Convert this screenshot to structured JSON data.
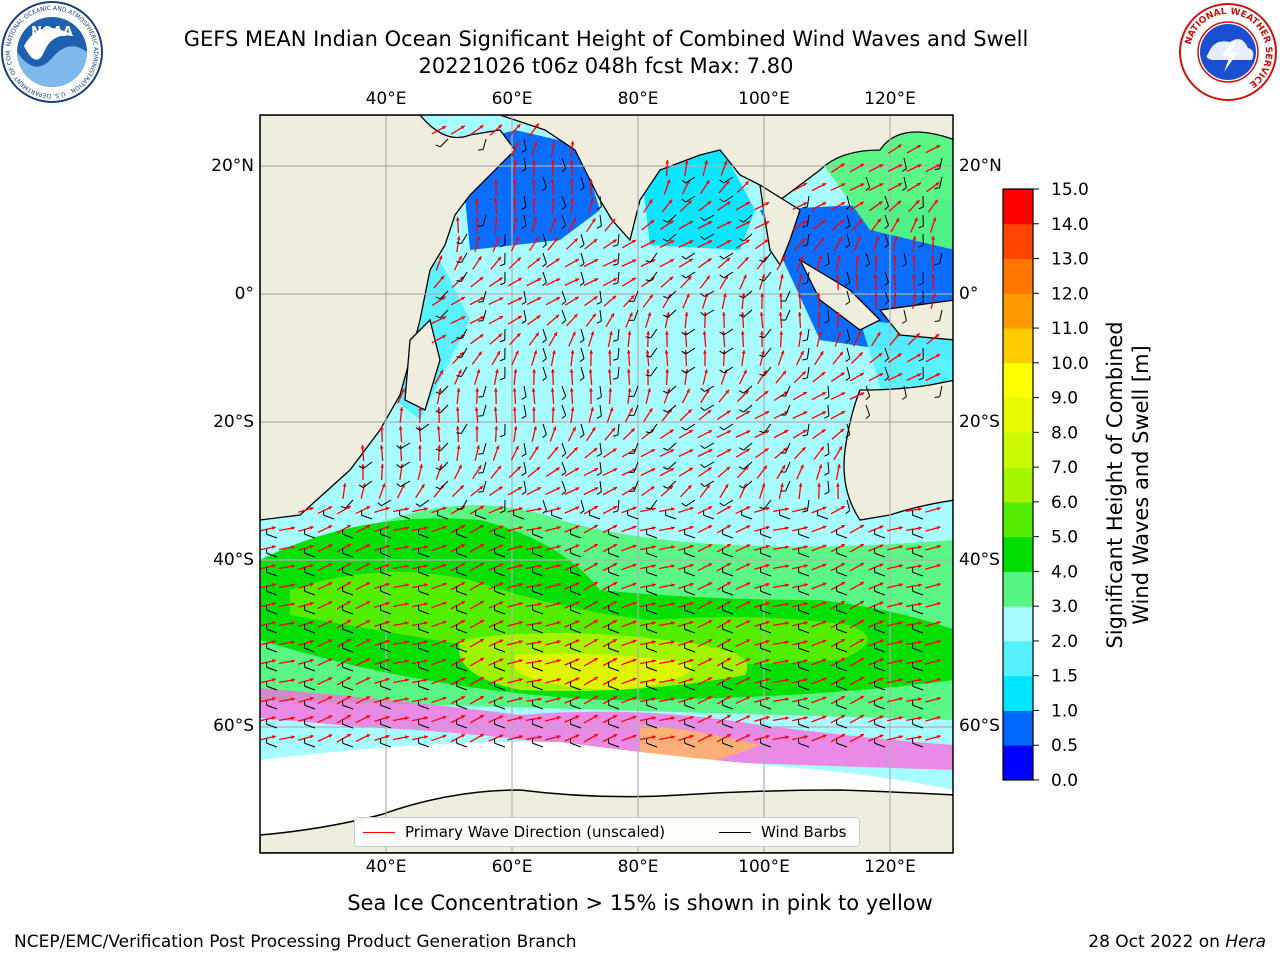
{
  "title": {
    "line1": "GEFS MEAN Indian Ocean Significant Height of Combined Wind Waves and Swell",
    "line2": "20221026 t06z 048h fcst   Max: 7.80"
  },
  "logos": {
    "noaa_text": "NOAA",
    "noaa_ring_text": "NATIONAL OCEANIC AND ATMOSPHERIC ADMINISTRATION · U.S. DEPARTMENT OF COMMERCE",
    "nws_ring_text": "NATIONAL WEATHER SERVICE"
  },
  "map": {
    "projection": "equirectangular",
    "lon_range": [
      20,
      130
    ],
    "lat_range": [
      -75,
      28
    ],
    "gridlines": true,
    "top_lon_labels": [
      "40°E",
      "60°E",
      "80°E",
      "100°E",
      "120°E"
    ],
    "bottom_lon_labels": [
      "40°E",
      "60°E",
      "80°E",
      "100°E",
      "120°E"
    ],
    "left_lat_labels": [
      "20°N",
      "0°",
      "20°S",
      "40°S",
      "60°S"
    ],
    "right_lat_labels": [
      "20°N",
      "0°",
      "20°S",
      "40°S",
      "60°S"
    ],
    "colors": {
      "land": "#efedde",
      "coast": "#000000",
      "grid": "#b0b0b0",
      "wave_arrow": "#ff0000",
      "wind_barb": "#000000",
      "ice": "#ff66dd"
    },
    "field": "Significant wave height [m]",
    "field_max": 7.8
  },
  "colorbar": {
    "label_line1": "Significant Height of Combined",
    "label_line2": "Wind Waves and Swell [m]",
    "ticks": [
      "0.0",
      "0.5",
      "1.0",
      "1.5",
      "2.0",
      "3.0",
      "4.0",
      "5.0",
      "6.0",
      "7.0",
      "8.0",
      "9.0",
      "10.0",
      "11.0",
      "12.0",
      "13.0",
      "14.0",
      "15.0"
    ],
    "levels": [
      0,
      0.5,
      1.0,
      1.5,
      2.0,
      3.0,
      4.0,
      5.0,
      6.0,
      7.0,
      8.0,
      9.0,
      10.0,
      11.0,
      12.0,
      13.0,
      14.0,
      15.0
    ],
    "colors": [
      "#0000ff",
      "#0066ff",
      "#00e5ff",
      "#55f0ff",
      "#a6fcff",
      "#55f780",
      "#00dd00",
      "#55ee00",
      "#a6f400",
      "#c8fa00",
      "#e6fa00",
      "#ffff00",
      "#ffcc00",
      "#ff9900",
      "#ff7700",
      "#ff4400",
      "#ff0000"
    ]
  },
  "legend": {
    "wave_label": "Primary Wave Direction (unscaled)",
    "wind_label": "Wind Barbs"
  },
  "subtitle": "Sea Ice Concentration > 15% is shown in pink to yellow",
  "footer": {
    "left": "NCEP/EMC/Verification Post Processing Product Generation Branch",
    "right_date": "28 Oct 2022 on ",
    "right_host": "Hera"
  }
}
